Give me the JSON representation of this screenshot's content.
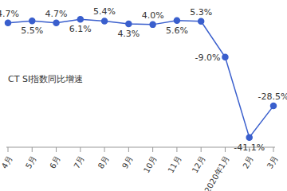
{
  "chart_data": {
    "type": "line",
    "categories": [
      "4月",
      "5月",
      "6月",
      "7月",
      "8月",
      "9月",
      "10月",
      "11月",
      "12月",
      "2020年1月",
      "2月",
      "3月"
    ],
    "series": [
      {
        "name": "CT SI指数同比增速",
        "color": "#3a5fcd",
        "marker": "circle",
        "values": [
          4.7,
          5.5,
          4.7,
          6.1,
          5.4,
          4.3,
          4.0,
          5.6,
          5.3,
          -9.0,
          -41.1,
          -28.5
        ],
        "value_labels": [
          "4.7%",
          "5.5%",
          "4.7%",
          "6.1%",
          "5.4%",
          "4.3%",
          "4.0%",
          "5.6%",
          "5.3%",
          "-9.0%",
          "-41.1%",
          "-28.5%"
        ]
      }
    ],
    "ylim": [
      -45,
      10
    ],
    "tick_labels": "x",
    "data_labels": true,
    "grid": false
  }
}
